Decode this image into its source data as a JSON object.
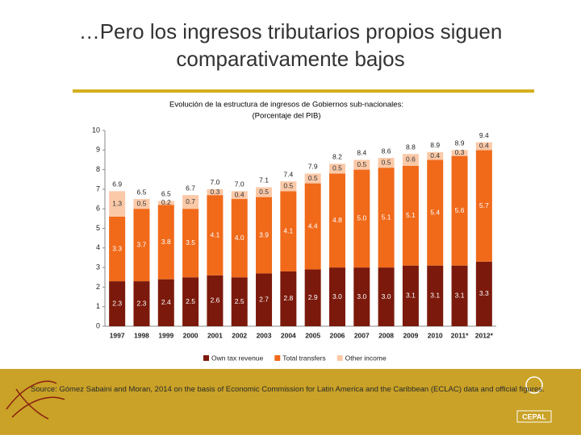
{
  "slide": {
    "title": "…Pero los ingresos tributarios propios siguen comparativamente bajos",
    "source": "Source: Gómez Sabaini and Moran, 2014 on the basis of Economic Commission for Latin America and the Caribbean (ECLAC) data and official figures.",
    "logo_text": "CEPAL"
  },
  "chart_data": {
    "type": "stacked-bar",
    "title": "Evolución de la estructura de ingresos de Gobiernos sub-nacionales:",
    "subtitle": "(Porcentaje del PIB)",
    "categories": [
      "1997",
      "1998",
      "1999",
      "2000",
      "2001",
      "2002",
      "2003",
      "2004",
      "2005",
      "2006",
      "2007",
      "2008",
      "2009",
      "2010",
      "2011*",
      "2012*"
    ],
    "series": [
      {
        "name": "Own tax revenue",
        "color": "#7b1a0c",
        "values": [
          2.3,
          2.3,
          2.4,
          2.5,
          2.6,
          2.5,
          2.7,
          2.8,
          2.9,
          3.0,
          3.0,
          3.0,
          3.1,
          3.1,
          3.1,
          3.3
        ],
        "value_labels": [
          "2.3",
          "2.3",
          "2.4",
          "2.5",
          "2.6",
          "2.5",
          "2.7",
          "2.8",
          "2.9",
          "3.0",
          "3.0",
          "3.0",
          "3.1",
          "3.1",
          "3.1",
          "3.3"
        ]
      },
      {
        "name": "Total transfers",
        "color": "#f06a1a",
        "values": [
          3.3,
          3.7,
          3.8,
          3.5,
          4.1,
          4.0,
          3.9,
          4.1,
          4.4,
          4.8,
          5.0,
          5.1,
          5.1,
          5.4,
          5.6,
          5.7
        ],
        "value_labels": [
          "3.3",
          "3.7",
          "3.8",
          "3.5",
          "4.1",
          "4.0",
          "3.9",
          "4.1",
          "4.4",
          "4.8",
          "5.0",
          "5.1",
          "5.1",
          "5.4",
          "5.6",
          "5.7"
        ]
      },
      {
        "name": "Other income",
        "color": "#fbc9a8",
        "values": [
          1.3,
          0.5,
          0.2,
          0.7,
          0.3,
          0.4,
          0.5,
          0.5,
          0.5,
          0.5,
          0.5,
          0.5,
          0.6,
          0.4,
          0.3,
          0.4
        ],
        "value_labels": [
          "1.3",
          "0.5",
          "0.2",
          "0.7",
          "0.3",
          "0.4",
          "0.5",
          "0.5",
          "0.5",
          "0.5",
          "0.5",
          "0.5",
          "0.6",
          "0.4",
          "0.3",
          "0.4"
        ]
      }
    ],
    "totals": [
      "6.9",
      "6.5",
      "6.5",
      "6.7",
      "7.0",
      "7.0",
      "7.1",
      "7.4",
      "7.9",
      "8.2",
      "8.4",
      "8.6",
      "8.8",
      "8.9",
      "8.9",
      "9.4"
    ],
    "ylim": [
      0,
      10
    ],
    "yticks": [
      0,
      1,
      2,
      3,
      4,
      5,
      6,
      7,
      8,
      9,
      10
    ]
  }
}
